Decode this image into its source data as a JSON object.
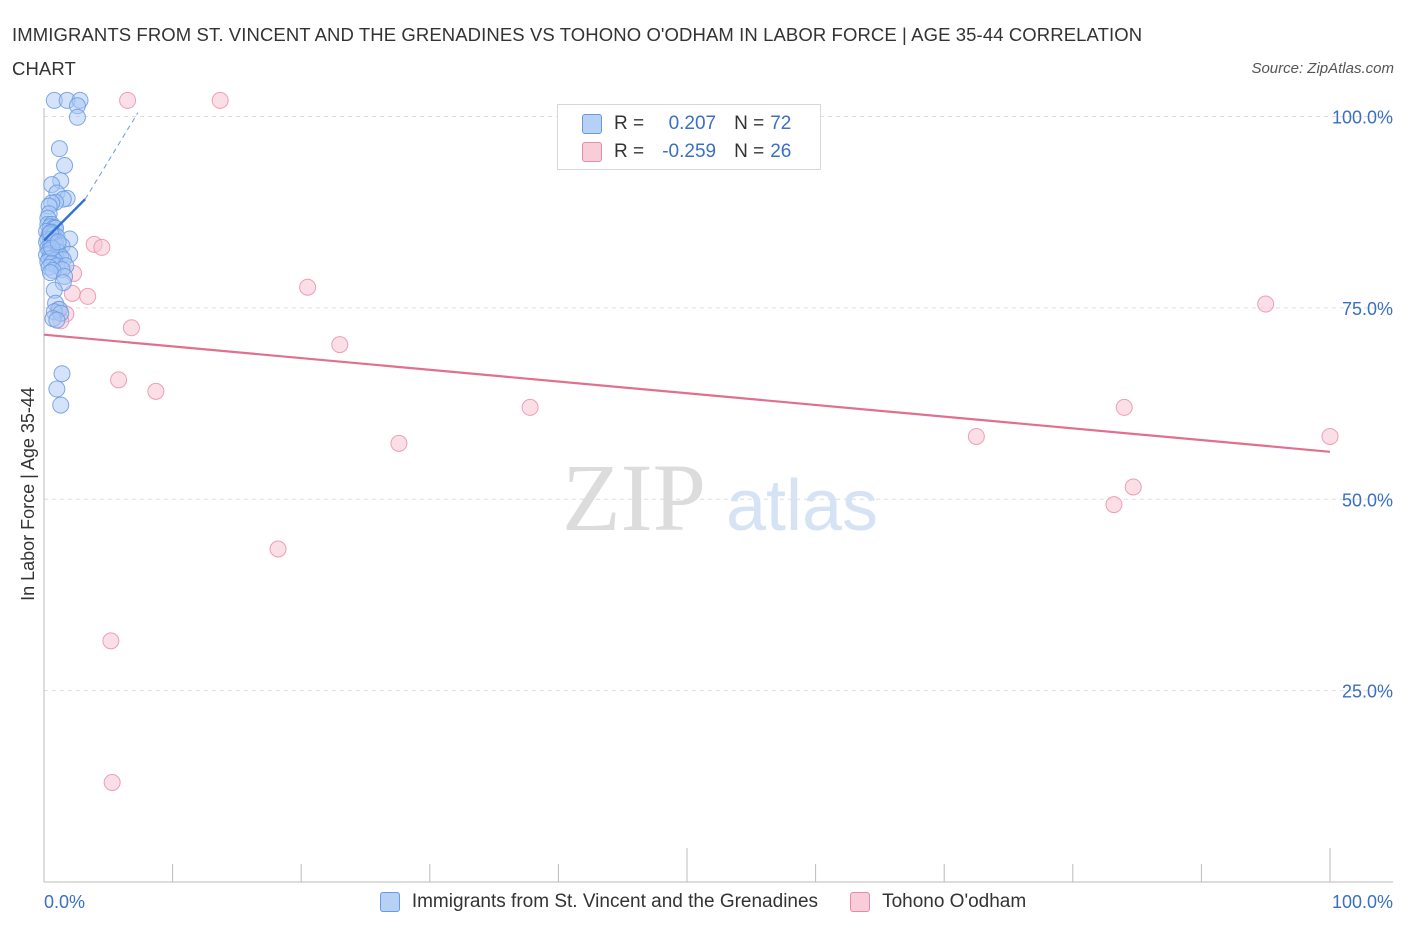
{
  "header": {
    "title": "IMMIGRANTS FROM ST. VINCENT AND THE GRENADINES VS TOHONO O'ODHAM IN LABOR FORCE | AGE 35-44 CORRELATION CHART",
    "source": "Source: ZipAtlas.com"
  },
  "watermark": {
    "zip": "ZIP",
    "atlas": "atlas"
  },
  "colors": {
    "blue_fill": "#aac8f5",
    "blue_stroke": "#6a9ae0",
    "blue_line": "#2f6fd6",
    "pink_fill": "#f8c4d4",
    "pink_stroke": "#e88aa8",
    "pink_line": "#e0708f",
    "axis_text": "#3a6fc4",
    "grid": "#dddddd"
  },
  "legend_top": {
    "rows": [
      {
        "r_label": "R =",
        "r_value": "0.207",
        "n_label": "N =",
        "n_value": "72"
      },
      {
        "r_label": "R =",
        "r_value": "-0.259",
        "n_label": "N =",
        "n_value": "26"
      }
    ]
  },
  "legend_bottom": {
    "series1": "Immigrants from St. Vincent and the Grenadines",
    "series2": "Tohono O'odham"
  },
  "chart_data": {
    "type": "scatter",
    "title": "IMMIGRANTS FROM ST. VINCENT AND THE GRENADINES VS TOHONO O'ODHAM IN LABOR FORCE | AGE 35-44 CORRELATION CHART",
    "xlabel": "",
    "ylabel": "In Labor Force | Age 35-44",
    "xlim": [
      0,
      100
    ],
    "ylim": [
      0,
      105
    ],
    "x_tick_labels": [
      "0.0%",
      "100.0%"
    ],
    "y_ticks": [
      25,
      50,
      75,
      100
    ],
    "y_tick_labels": [
      "25.0%",
      "50.0%",
      "75.0%",
      "100.0%"
    ],
    "grid": true,
    "series": [
      {
        "name": "Immigrants from St. Vincent and the Grenadines",
        "r": 0.207,
        "n": 72,
        "trend": {
          "x": [
            0.0,
            3.2
          ],
          "y": [
            83.8,
            89.2
          ],
          "dashed_to": [
            7.3,
            100.5
          ]
        },
        "points": [
          [
            0.8,
            102.1
          ],
          [
            1.8,
            102.1
          ],
          [
            2.8,
            102.1
          ],
          [
            2.6,
            101.4
          ],
          [
            2.6,
            99.9
          ],
          [
            1.2,
            95.8
          ],
          [
            1.6,
            93.6
          ],
          [
            1.3,
            91.6
          ],
          [
            0.6,
            91.1
          ],
          [
            1.0,
            90.0
          ],
          [
            1.8,
            89.3
          ],
          [
            1.5,
            89.2
          ],
          [
            0.9,
            88.8
          ],
          [
            0.6,
            88.7
          ],
          [
            0.4,
            88.3
          ],
          [
            0.4,
            87.3
          ],
          [
            0.3,
            86.7
          ],
          [
            0.3,
            85.9
          ],
          [
            0.6,
            85.9
          ],
          [
            0.5,
            85.6
          ],
          [
            0.8,
            85.5
          ],
          [
            0.9,
            85.4
          ],
          [
            0.2,
            85.0
          ],
          [
            0.6,
            84.9
          ],
          [
            0.4,
            84.6
          ],
          [
            0.7,
            84.5
          ],
          [
            1.0,
            84.3
          ],
          [
            2.0,
            84.0
          ],
          [
            0.3,
            84.0
          ],
          [
            0.5,
            83.9
          ],
          [
            0.8,
            83.7
          ],
          [
            0.2,
            83.6
          ],
          [
            0.6,
            83.5
          ],
          [
            0.9,
            83.3
          ],
          [
            1.4,
            83.1
          ],
          [
            0.5,
            83.0
          ],
          [
            0.3,
            82.8
          ],
          [
            0.7,
            82.6
          ],
          [
            0.4,
            82.5
          ],
          [
            1.1,
            82.3
          ],
          [
            2.0,
            82.0
          ],
          [
            0.5,
            82.1
          ],
          [
            0.9,
            81.9
          ],
          [
            0.2,
            81.9
          ],
          [
            1.3,
            81.7
          ],
          [
            0.6,
            81.5
          ],
          [
            0.4,
            81.4
          ],
          [
            1.5,
            81.3
          ],
          [
            0.8,
            81.2
          ],
          [
            0.3,
            81.0
          ],
          [
            0.6,
            80.8
          ],
          [
            1.0,
            80.5
          ],
          [
            0.4,
            80.3
          ],
          [
            1.7,
            80.5
          ],
          [
            1.4,
            80.0
          ],
          [
            0.7,
            79.9
          ],
          [
            0.5,
            79.6
          ],
          [
            1.6,
            79.1
          ],
          [
            1.5,
            78.3
          ],
          [
            0.8,
            77.3
          ],
          [
            0.9,
            75.6
          ],
          [
            1.2,
            74.8
          ],
          [
            0.8,
            74.5
          ],
          [
            1.3,
            74.3
          ],
          [
            0.7,
            73.6
          ],
          [
            1.0,
            73.4
          ],
          [
            1.4,
            66.4
          ],
          [
            1.0,
            64.4
          ],
          [
            1.3,
            62.3
          ],
          [
            0.5,
            84.8
          ],
          [
            0.6,
            82.8
          ],
          [
            1.1,
            83.6
          ]
        ]
      },
      {
        "name": "Tohono O'odham",
        "r": -0.259,
        "n": 26,
        "trend": {
          "x": [
            0,
            100
          ],
          "y": [
            71.5,
            56.2
          ]
        },
        "points": [
          [
            6.5,
            102.1
          ],
          [
            13.7,
            102.1
          ],
          [
            3.9,
            83.3
          ],
          [
            4.5,
            82.9
          ],
          [
            2.3,
            79.5
          ],
          [
            20.5,
            77.7
          ],
          [
            2.2,
            76.9
          ],
          [
            3.4,
            76.5
          ],
          [
            1.1,
            74.8
          ],
          [
            1.7,
            74.2
          ],
          [
            1.3,
            73.3
          ],
          [
            6.8,
            72.4
          ],
          [
            23.0,
            70.2
          ],
          [
            5.8,
            65.6
          ],
          [
            8.7,
            64.1
          ],
          [
            37.8,
            62.0
          ],
          [
            95.0,
            75.5
          ],
          [
            84.0,
            62.0
          ],
          [
            72.5,
            58.2
          ],
          [
            100.0,
            58.2
          ],
          [
            27.6,
            57.3
          ],
          [
            83.2,
            49.3
          ],
          [
            84.7,
            51.6
          ],
          [
            18.2,
            43.5
          ],
          [
            5.2,
            31.5
          ],
          [
            5.3,
            13.0
          ]
        ]
      }
    ]
  }
}
